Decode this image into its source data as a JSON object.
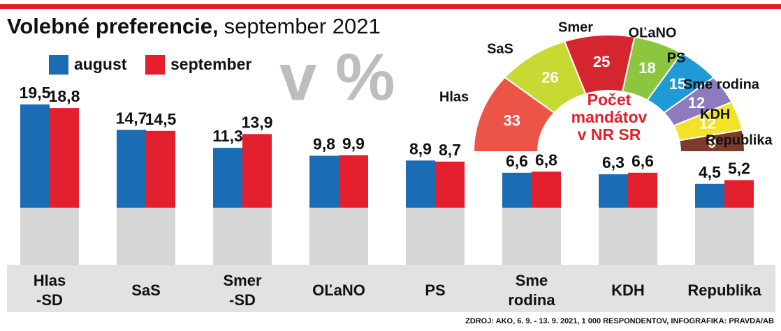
{
  "chart_data": [
    {
      "type": "bar",
      "title": "Volebné preferencie,",
      "subtitle": "september 2021",
      "annotation": "v %",
      "source": "ZDROJ: AKO, 6. 9. - 13. 9. 2021, 1 000 RESPONDENTOV, INFOGRAFIKA: PRAVDA/AB",
      "categories": [
        "Hlas\n-SD",
        "SaS",
        "Smer\n-SD",
        "OĽaNO",
        "PS",
        "Sme\nrodina",
        "KDH",
        "Republika"
      ],
      "series": [
        {
          "name": "august",
          "color": "#1a6db5",
          "values": [
            19.5,
            14.7,
            11.3,
            9.8,
            8.9,
            6.6,
            6.3,
            4.5
          ],
          "value_labels": [
            "19,5",
            "14,7",
            "11,3",
            "9,8",
            "8,9",
            "6,6",
            "6,3",
            "4,5"
          ]
        },
        {
          "name": "september",
          "color": "#e31e2d",
          "values": [
            18.8,
            14.5,
            13.9,
            9.9,
            8.7,
            6.8,
            6.6,
            5.2
          ],
          "value_labels": [
            "18,8",
            "14,5",
            "13,9",
            "9,9",
            "8,7",
            "6,8",
            "6,6",
            "5,2"
          ]
        }
      ]
    },
    {
      "type": "pie",
      "title": "Počet\nmandátov\nv NR SR",
      "categories": [
        "Hlas",
        "SaS",
        "Smer",
        "OĽaNO",
        "PS",
        "Sme rodina",
        "KDH",
        "Republika"
      ],
      "values": [
        33,
        26,
        25,
        18,
        15,
        12,
        12,
        9
      ],
      "colors": [
        "#ec5448",
        "#c9d934",
        "#d5262f",
        "#8cc63f",
        "#1e9ad6",
        "#8d7bbb",
        "#f3e22a",
        "#7c3b2b"
      ]
    }
  ]
}
